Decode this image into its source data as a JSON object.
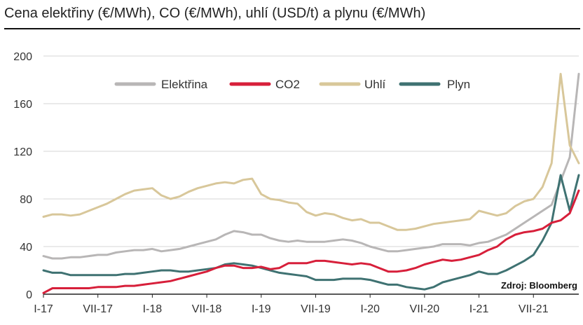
{
  "chart_data": {
    "type": "line",
    "title": "Cena elektřiny (€/MWh), CO (€/MWh), uhlí (USD/t) a plynu (€/MWh)",
    "xlabel": "",
    "ylabel": "",
    "ylim": [
      0,
      200
    ],
    "yticks": [
      0,
      40,
      80,
      120,
      160,
      200
    ],
    "xticks": [
      "I-17",
      "VII-17",
      "I-18",
      "VII-18",
      "I-19",
      "VII-19",
      "I-20",
      "VII-20",
      "I-21",
      "VII-21"
    ],
    "x_months": [
      "I-17",
      "II-17",
      "III-17",
      "IV-17",
      "V-17",
      "VI-17",
      "VII-17",
      "VIII-17",
      "IX-17",
      "X-17",
      "XI-17",
      "XII-17",
      "I-18",
      "II-18",
      "III-18",
      "IV-18",
      "V-18",
      "VI-18",
      "VII-18",
      "VIII-18",
      "IX-18",
      "X-18",
      "XI-18",
      "XII-18",
      "I-19",
      "II-19",
      "III-19",
      "IV-19",
      "V-19",
      "VI-19",
      "VII-19",
      "VIII-19",
      "IX-19",
      "X-19",
      "XI-19",
      "XII-19",
      "I-20",
      "II-20",
      "III-20",
      "IV-20",
      "V-20",
      "VI-20",
      "VII-20",
      "VIII-20",
      "IX-20",
      "X-20",
      "XI-20",
      "XII-20",
      "I-21",
      "II-21",
      "III-21",
      "IV-21",
      "V-21",
      "VI-21",
      "VII-21",
      "VIII-21",
      "IX-21",
      "X-21",
      "XI-21",
      "XII-21"
    ],
    "grid": true,
    "legend_placement": "top",
    "series": [
      {
        "name": "Elektřina",
        "color": "#b8b6b6",
        "values": [
          32,
          30,
          30,
          31,
          31,
          32,
          33,
          33,
          35,
          36,
          37,
          37,
          38,
          36,
          37,
          38,
          40,
          42,
          44,
          46,
          50,
          53,
          52,
          50,
          50,
          47,
          45,
          44,
          45,
          44,
          44,
          44,
          45,
          46,
          45,
          43,
          40,
          38,
          36,
          36,
          37,
          38,
          39,
          40,
          42,
          42,
          42,
          41,
          43,
          44,
          47,
          50,
          55,
          60,
          65,
          70,
          75,
          95,
          115,
          185
        ]
      },
      {
        "name": "CO2",
        "color": "#d71f3a",
        "values": [
          1,
          5,
          5,
          5,
          5,
          5,
          6,
          6,
          6,
          7,
          7,
          8,
          9,
          10,
          11,
          13,
          15,
          17,
          19,
          22,
          24,
          24,
          22,
          22,
          23,
          21,
          22,
          26,
          26,
          26,
          28,
          28,
          27,
          26,
          25,
          26,
          25,
          22,
          19,
          19,
          20,
          22,
          25,
          27,
          29,
          28,
          29,
          31,
          33,
          37,
          40,
          46,
          50,
          52,
          53,
          55,
          60,
          62,
          68,
          87
        ]
      },
      {
        "name": "Uhlí",
        "color": "#d8c79a",
        "values": [
          65,
          67,
          67,
          66,
          67,
          70,
          73,
          76,
          80,
          84,
          87,
          88,
          89,
          83,
          80,
          82,
          86,
          89,
          91,
          93,
          94,
          93,
          96,
          97,
          84,
          80,
          79,
          77,
          76,
          69,
          66,
          68,
          67,
          64,
          62,
          63,
          60,
          60,
          57,
          54,
          54,
          55,
          57,
          59,
          60,
          61,
          62,
          63,
          70,
          68,
          66,
          68,
          74,
          78,
          80,
          90,
          110,
          185,
          125,
          110
        ]
      },
      {
        "name": "Plyn",
        "color": "#3f7272",
        "values": [
          20,
          18,
          18,
          16,
          16,
          16,
          16,
          16,
          16,
          17,
          17,
          18,
          19,
          20,
          20,
          19,
          19,
          20,
          21,
          22,
          25,
          26,
          25,
          24,
          22,
          20,
          18,
          17,
          16,
          15,
          12,
          12,
          12,
          13,
          13,
          13,
          12,
          10,
          8,
          8,
          6,
          5,
          4,
          6,
          10,
          12,
          14,
          16,
          19,
          17,
          17,
          20,
          24,
          28,
          33,
          45,
          60,
          100,
          70,
          100
        ]
      }
    ],
    "source_note": "Zdroj: Bloomberg"
  }
}
